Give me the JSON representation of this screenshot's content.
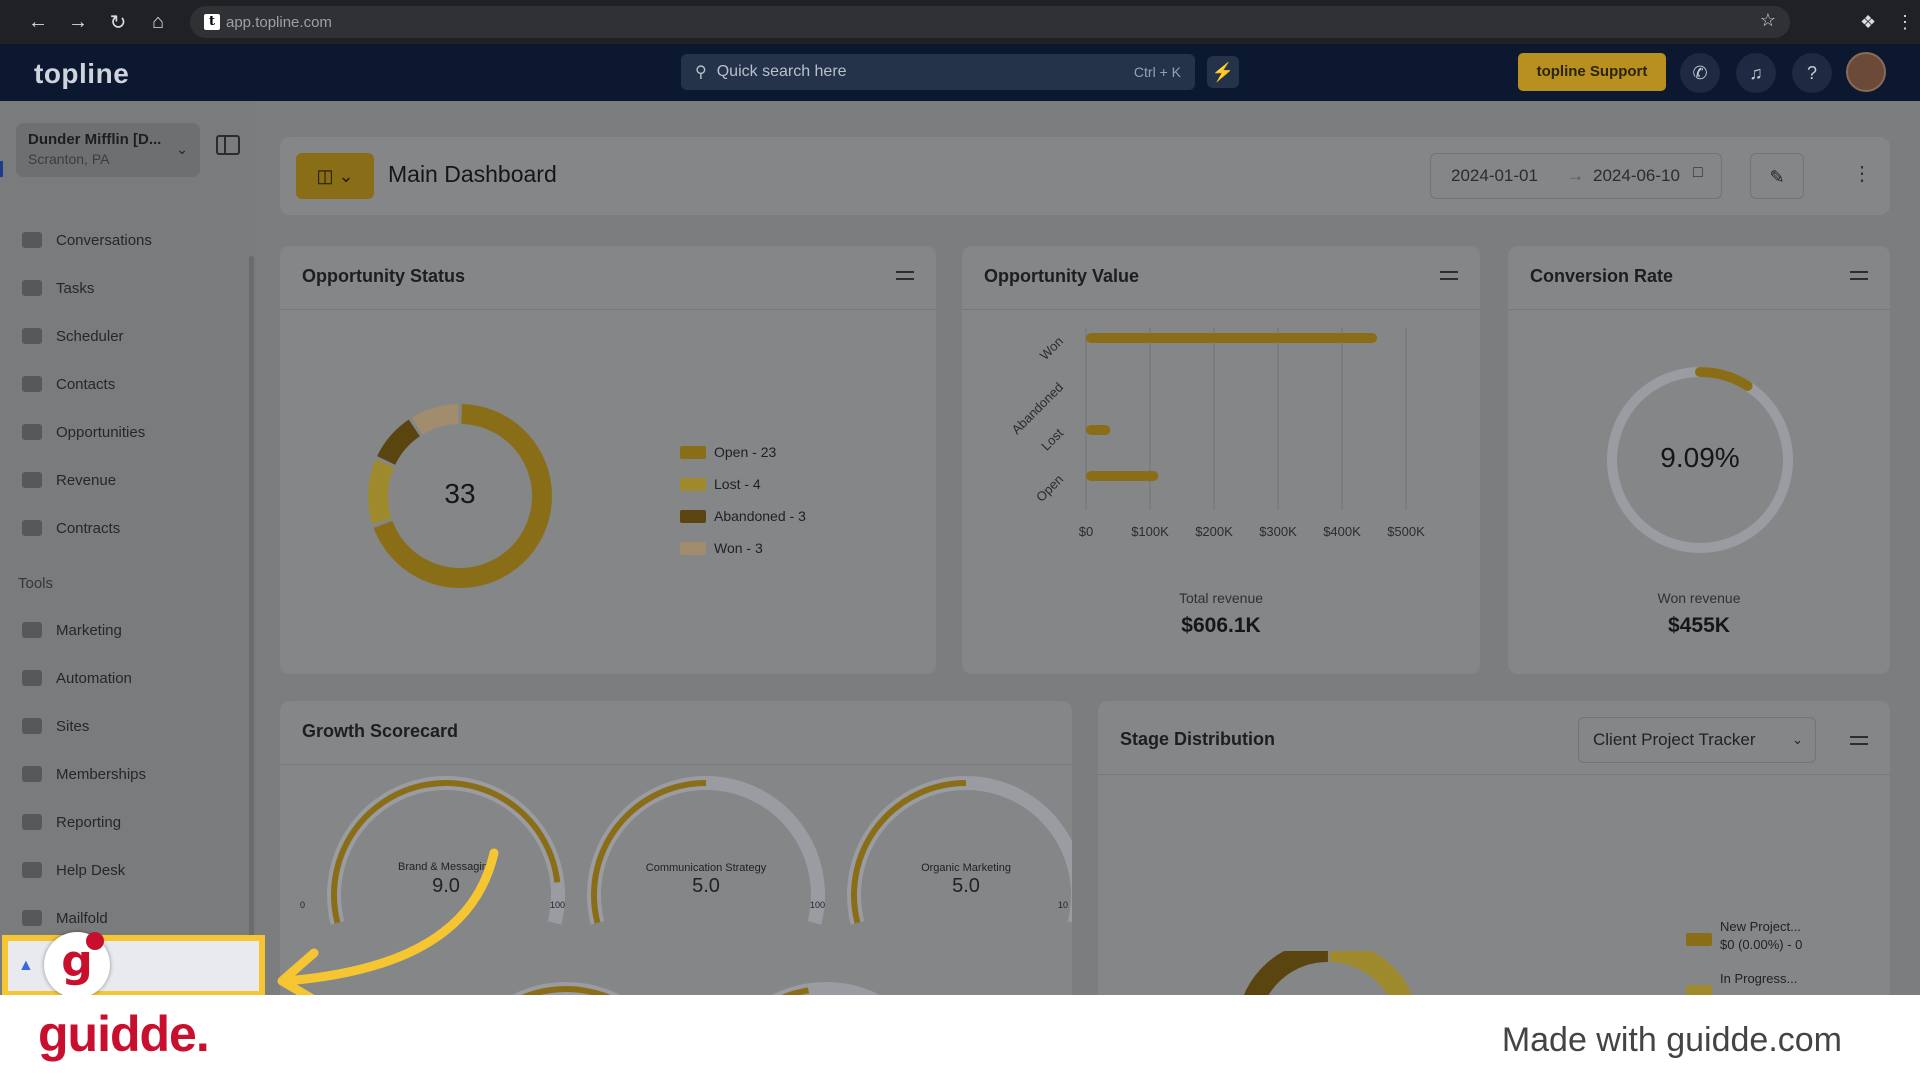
{
  "browser": {
    "url": "app.topline.com",
    "favicon": "t"
  },
  "header": {
    "logo": "topline",
    "search_placeholder": "Quick search here",
    "search_shortcut": "Ctrl + K",
    "support_label": "topline Support"
  },
  "sidebar": {
    "company_name": "Dunder Mifflin [D...",
    "company_location": "Scranton, PA",
    "items": [
      {
        "label": "Conversations",
        "icon": "chat-icon"
      },
      {
        "label": "Tasks",
        "icon": "clipboard-icon"
      },
      {
        "label": "Scheduler",
        "icon": "calendar-icon"
      },
      {
        "label": "Contacts",
        "icon": "person-icon"
      },
      {
        "label": "Opportunities",
        "icon": "target-icon"
      },
      {
        "label": "Revenue",
        "icon": "card-icon"
      },
      {
        "label": "Contracts",
        "icon": "document-icon"
      }
    ],
    "tools_label": "Tools",
    "tools": [
      {
        "label": "Marketing",
        "icon": "megaphone-icon"
      },
      {
        "label": "Automation",
        "icon": "cogs-icon"
      },
      {
        "label": "Sites",
        "icon": "globe-icon"
      },
      {
        "label": "Memberships",
        "icon": "people-icon"
      },
      {
        "label": "Reporting",
        "icon": "pie-icon"
      },
      {
        "label": "Help Desk",
        "icon": "help-icon"
      },
      {
        "label": "Mailfold",
        "icon": "mail-icon"
      }
    ]
  },
  "dashboard": {
    "title": "Main Dashboard",
    "date_from": "2024-01-01",
    "date_to": "2024-06-10"
  },
  "opportunity_status": {
    "title": "Opportunity Status",
    "total": "33",
    "legend": [
      "Open - 23",
      "Lost - 4",
      "Abandoned - 3",
      "Won - 3"
    ],
    "colors": [
      "#8a6e17",
      "#9e8a2c",
      "#5a4410",
      "#a28c6e"
    ]
  },
  "opportunity_value": {
    "title": "Opportunity Value",
    "total_label": "Total revenue",
    "total_value": "$606.1K"
  },
  "conversion_rate": {
    "title": "Conversion Rate",
    "value": "9.09%",
    "fraction": 0.0909,
    "won_label": "Won revenue",
    "won_value": "$455K"
  },
  "growth_scorecard": {
    "title": "Growth Scorecard",
    "gauges": [
      {
        "label": "Brand & Messaging",
        "value": "9.0",
        "min": "0",
        "max": "10",
        "score": 9.0
      },
      {
        "label": "Communication Strategy",
        "value": "5.0",
        "min": "0",
        "max": "10",
        "score": 5.0
      },
      {
        "label": "Organic Marketing",
        "value": "5.0",
        "min": "0",
        "max": "10",
        "score": 5.0
      }
    ]
  },
  "stage_distribution": {
    "title": "Stage Distribution",
    "pipeline": "Client Project Tracker",
    "legend": [
      {
        "name": "New Project...",
        "value": "$0 (0.00%) - 0"
      },
      {
        "name": "In Progress...",
        "value": ""
      }
    ]
  },
  "chart_data": {
    "type": "bar",
    "orientation": "horizontal",
    "title": "Opportunity Value",
    "categories": [
      "Won",
      "Abandoned",
      "Lost",
      "Open"
    ],
    "values": [
      455000,
      0,
      38000,
      113000
    ],
    "x_ticks": [
      "$0",
      "$100K",
      "$200K",
      "$300K",
      "$400K",
      "$500K"
    ],
    "xlim": [
      0,
      500000
    ],
    "grid": true,
    "color": "#8a6e17"
  },
  "footer": {
    "brand": "guidde.",
    "made_with": "Made with guidde.com"
  }
}
